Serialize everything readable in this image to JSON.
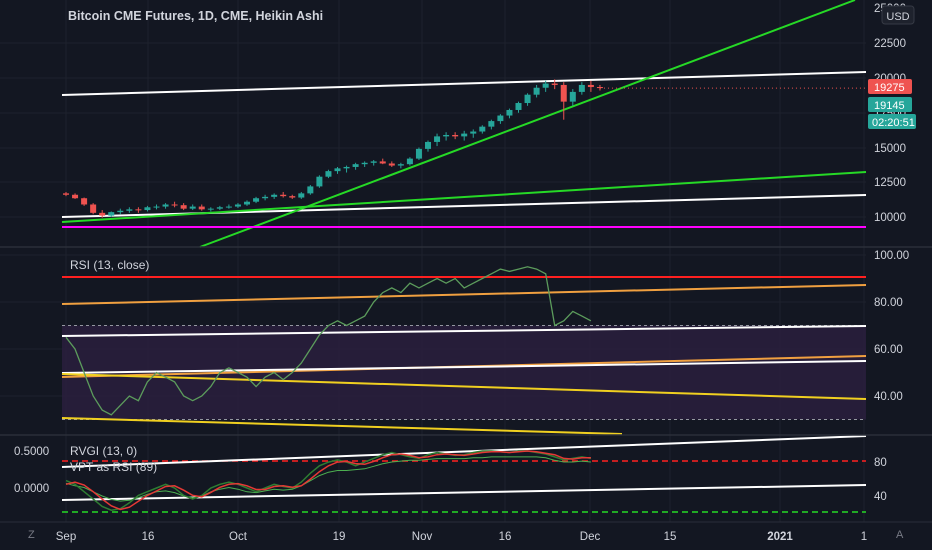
{
  "header": {
    "title": "Bitcoin CME Futures, 1D, CME, Heikin Ashi",
    "currency": "USD"
  },
  "badges": {
    "last_price": "19275",
    "prev_price": "19145",
    "countdown": "02:20:51"
  },
  "colors": {
    "background": "#131722",
    "up": "#26a69a",
    "down": "#ef5350",
    "grid": "#1e222d",
    "trend_green": "#26d926",
    "trend_white": "#ffffff",
    "magenta": "#ff00ff",
    "rsi_line": "#5c9c5c",
    "rsi_band": "#2a1f3d",
    "orange": "#f0a040",
    "yellow": "#f0d020",
    "red_line": "#ff2020"
  },
  "axis": {
    "x_ticks": [
      "Sep",
      "16",
      "Oct",
      "19",
      "Nov",
      "16",
      "Dec",
      "15",
      "2021",
      "1"
    ],
    "price_ticks": [
      "25000",
      "22500",
      "20000",
      "17500",
      "15000",
      "12500",
      "10000"
    ],
    "rsi_ticks": [
      "100.00",
      "80.00",
      "60.00",
      "40.00"
    ],
    "rvgi_left_ticks": [
      "0.5000",
      "0.0000"
    ],
    "rvgi_right_ticks": [
      "80",
      "40"
    ]
  },
  "panes": {
    "rsi": {
      "label": "RSI (13, close)"
    },
    "rvgi": {
      "label": "RVGI (13, 0)"
    },
    "vpt": {
      "label": "VPT as RSI (89)"
    }
  },
  "buttons": {
    "timezone": "Z",
    "log": "A"
  },
  "chart_data": [
    {
      "type": "candlestick",
      "title": "Bitcoin CME Futures, 1D, CME, Heikin Ashi",
      "ylim": [
        8500,
        26000
      ],
      "candles": [
        [
          11700,
          11800,
          11500,
          11600
        ],
        [
          11600,
          11700,
          11300,
          11350
        ],
        [
          11350,
          11400,
          10800,
          10900
        ],
        [
          10900,
          11000,
          10200,
          10300
        ],
        [
          10300,
          10500,
          9950,
          10100
        ],
        [
          10100,
          10400,
          10000,
          10350
        ],
        [
          10350,
          10600,
          10200,
          10450
        ],
        [
          10450,
          10700,
          10300,
          10550
        ],
        [
          10550,
          10700,
          10300,
          10500
        ],
        [
          10500,
          10800,
          10400,
          10700
        ],
        [
          10700,
          10900,
          10550,
          10750
        ],
        [
          10750,
          11000,
          10600,
          10900
        ],
        [
          10900,
          11100,
          10700,
          10850
        ],
        [
          10850,
          11000,
          10500,
          10600
        ],
        [
          10600,
          10900,
          10500,
          10750
        ],
        [
          10750,
          10900,
          10450,
          10550
        ],
        [
          10550,
          10700,
          10400,
          10600
        ],
        [
          10600,
          10800,
          10500,
          10700
        ],
        [
          10700,
          10900,
          10600,
          10750
        ],
        [
          10750,
          11000,
          10650,
          10900
        ],
        [
          10900,
          11200,
          10800,
          11100
        ],
        [
          11100,
          11450,
          11000,
          11350
        ],
        [
          11350,
          11600,
          11200,
          11450
        ],
        [
          11450,
          11700,
          11300,
          11600
        ],
        [
          11600,
          11800,
          11400,
          11500
        ],
        [
          11500,
          11600,
          11300,
          11400
        ],
        [
          11400,
          11800,
          11300,
          11700
        ],
        [
          11700,
          12300,
          11600,
          12200
        ],
        [
          12200,
          13000,
          12100,
          12900
        ],
        [
          12900,
          13400,
          12800,
          13300
        ],
        [
          13300,
          13600,
          13100,
          13500
        ],
        [
          13500,
          13700,
          13200,
          13600
        ],
        [
          13600,
          13900,
          13400,
          13800
        ],
        [
          13800,
          14000,
          13600,
          13900
        ],
        [
          13900,
          14100,
          13700,
          14000
        ],
        [
          14000,
          14200,
          13800,
          13850
        ],
        [
          13850,
          14000,
          13600,
          13700
        ],
        [
          13700,
          13900,
          13500,
          13800
        ],
        [
          13800,
          14300,
          13700,
          14200
        ],
        [
          14200,
          15000,
          14100,
          14900
        ],
        [
          14900,
          15500,
          14700,
          15400
        ],
        [
          15400,
          16000,
          15100,
          15800
        ],
        [
          15800,
          16100,
          15500,
          15900
        ],
        [
          15900,
          16100,
          15600,
          15800
        ],
        [
          15800,
          16200,
          15500,
          16000
        ],
        [
          16000,
          16300,
          15700,
          16150
        ],
        [
          16150,
          16600,
          16000,
          16500
        ],
        [
          16500,
          17000,
          16300,
          16900
        ],
        [
          16900,
          17400,
          16700,
          17300
        ],
        [
          17300,
          17800,
          17100,
          17700
        ],
        [
          17700,
          18300,
          17500,
          18200
        ],
        [
          18200,
          18900,
          18000,
          18800
        ],
        [
          18800,
          19500,
          18600,
          19300
        ],
        [
          19300,
          19800,
          19000,
          19600
        ],
        [
          19600,
          19900,
          19200,
          19500
        ],
        [
          19500,
          19700,
          17000,
          18300
        ],
        [
          18300,
          19200,
          18000,
          19000
        ],
        [
          19000,
          19700,
          18800,
          19500
        ],
        [
          19500,
          19800,
          19000,
          19350
        ],
        [
          19350,
          19500,
          19100,
          19275
        ]
      ]
    },
    {
      "type": "line",
      "title": "RSI (13, close)",
      "ylim": [
        22,
        100
      ],
      "values": [
        65,
        60,
        50,
        40,
        34,
        32,
        36,
        40,
        38,
        46,
        50,
        48,
        46,
        40,
        38,
        40,
        44,
        50,
        52,
        50,
        48,
        44,
        48,
        50,
        47,
        50,
        54,
        60,
        66,
        70,
        72,
        70,
        72,
        74,
        80,
        84,
        86,
        84,
        88,
        86,
        88,
        90,
        88,
        90,
        86,
        88,
        90,
        92,
        94,
        93,
        94,
        95,
        94,
        92,
        70,
        72,
        76,
        74,
        72
      ]
    },
    {
      "type": "line",
      "title": "RVGI (13, 0)",
      "ylim": [
        -0.4,
        0.7
      ],
      "series": [
        {
          "values": [
            0.1,
            0.05,
            -0.05,
            -0.15,
            -0.25,
            -0.3,
            -0.28,
            -0.2,
            -0.1,
            -0.05,
            0.0,
            0.05,
            0.0,
            -0.1,
            -0.15,
            -0.1,
            0.0,
            0.05,
            0.08,
            0.05,
            0.0,
            -0.05,
            0.0,
            0.05,
            0.02,
            0.0,
            0.08,
            0.2,
            0.3,
            0.35,
            0.38,
            0.35,
            0.3,
            0.35,
            0.4,
            0.45,
            0.48,
            0.45,
            0.42,
            0.4,
            0.45,
            0.48,
            0.46,
            0.44,
            0.45,
            0.48,
            0.5,
            0.5,
            0.49,
            0.48,
            0.5,
            0.5,
            0.48,
            0.46,
            0.42,
            0.38,
            0.4,
            0.42,
            0.4
          ]
        },
        {
          "values": [
            0.05,
            0.08,
            0.04,
            -0.05,
            -0.15,
            -0.24,
            -0.29,
            -0.26,
            -0.18,
            -0.1,
            -0.04,
            0.02,
            0.03,
            -0.03,
            -0.1,
            -0.12,
            -0.06,
            0.01,
            0.05,
            0.06,
            0.03,
            -0.02,
            -0.02,
            0.02,
            0.03,
            0.01,
            0.03,
            0.12,
            0.22,
            0.3,
            0.35,
            0.36,
            0.33,
            0.32,
            0.36,
            0.41,
            0.45,
            0.46,
            0.44,
            0.41,
            0.42,
            0.45,
            0.46,
            0.45,
            0.44,
            0.46,
            0.48,
            0.49,
            0.49,
            0.48,
            0.49,
            0.5,
            0.49,
            0.47,
            0.45,
            0.4,
            0.39,
            0.41,
            0.41
          ]
        }
      ]
    },
    {
      "type": "line",
      "title": "VPT as RSI (89)",
      "ylim": [
        25,
        95
      ],
      "series": [
        {
          "values": [
            55,
            52,
            50,
            45,
            40,
            36,
            34,
            35,
            38,
            42,
            45,
            46,
            44,
            40,
            38,
            40,
            45,
            48,
            50,
            48,
            45,
            44,
            46,
            48,
            47,
            48,
            52,
            58,
            64,
            68,
            70,
            70,
            71,
            72,
            75,
            78,
            80,
            81,
            82,
            82,
            83,
            84,
            84,
            84,
            84,
            85,
            85,
            86,
            86,
            86,
            86,
            86,
            86,
            85,
            82,
            80,
            80,
            81,
            80
          ]
        }
      ]
    }
  ]
}
